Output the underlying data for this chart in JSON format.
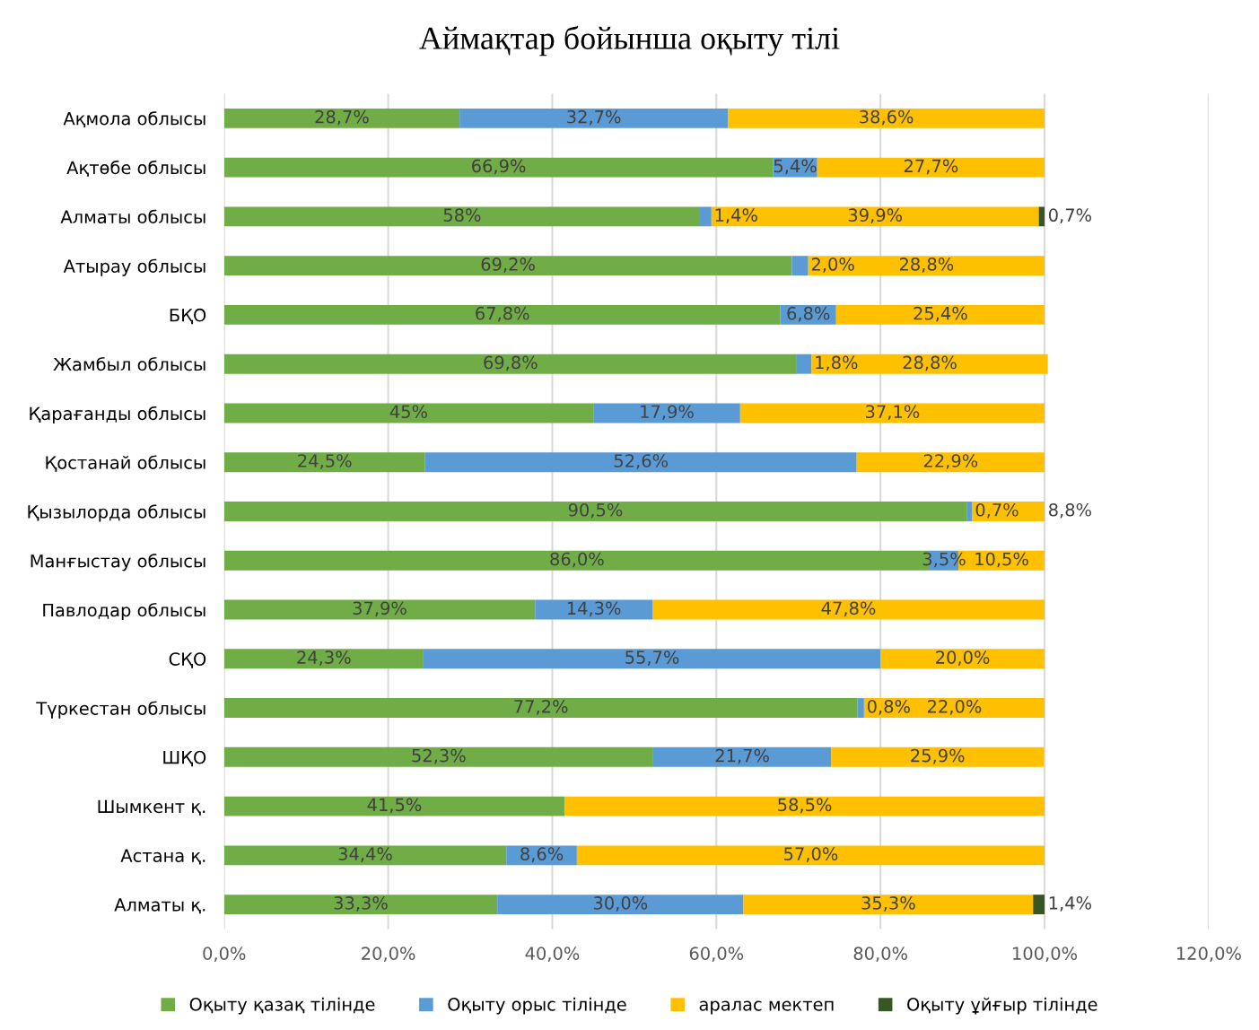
{
  "chart_data": {
    "type": "bar",
    "orientation": "horizontal",
    "stacked": true,
    "title": "Аймақтар бойынша оқыту тілі",
    "categories": [
      "Ақмола облысы",
      "Ақтөбе облысы",
      "Алматы облысы",
      "Атырау облысы",
      "БҚО",
      "Жамбыл облысы",
      "Қарағанды облысы",
      "Қостанай облысы",
      "Қызылорда облысы",
      "Манғыстау облысы",
      "Павлодар облысы",
      "СҚО",
      "Түркестан облысы",
      "ШҚО",
      "Шымкент қ.",
      "Астана қ.",
      "Алматы қ."
    ],
    "series": [
      {
        "name": "Оқыту қазақ тілінде",
        "color": "#70ad47",
        "values": [
          28.7,
          66.9,
          58,
          69.2,
          67.8,
          69.8,
          45,
          24.5,
          90.5,
          86.0,
          37.9,
          24.3,
          77.2,
          52.3,
          41.5,
          34.4,
          33.3
        ],
        "value_labels": [
          "28,7%",
          "66,9%",
          "58%",
          "69,2%",
          "67,8%",
          "69,8%",
          "45%",
          "24,5%",
          "90,5%",
          "86,0%",
          "37,9%",
          "24,3%",
          "77,2%",
          "52,3%",
          "41,5%",
          "34,4%",
          "33,3%"
        ]
      },
      {
        "name": "Оқыту орыс тілінде",
        "color": "#5b9bd5",
        "values": [
          32.7,
          5.4,
          1.4,
          2.0,
          6.8,
          1.8,
          17.9,
          52.6,
          0.7,
          3.5,
          14.3,
          55.7,
          0.8,
          21.7,
          null,
          8.6,
          30.0
        ],
        "value_labels": [
          "32,7%",
          "5,4%",
          "1,4%",
          "2,0%",
          "6,8%",
          "1,8%",
          "17,9%",
          "52,6%",
          "0,7%",
          "3,5%",
          "14,3%",
          "55,7%",
          "0,8%",
          "21,7%",
          null,
          "8,6%",
          "30,0%"
        ]
      },
      {
        "name": "аралас мектеп",
        "color": "#ffc000",
        "values": [
          38.6,
          27.7,
          39.9,
          28.8,
          25.4,
          28.8,
          37.1,
          22.9,
          8.8,
          10.5,
          47.8,
          20.0,
          22.0,
          25.9,
          58.5,
          57.0,
          35.3
        ],
        "value_labels": [
          "38,6%",
          "27,7%",
          "39,9%",
          "28,8%",
          "25,4%",
          "28,8%",
          "37,1%",
          "22,9%",
          "8,8%",
          "10,5%",
          "47,8%",
          "20,0%",
          "22,0%",
          "25,9%",
          "58,5%",
          "57,0%",
          "35,3%"
        ]
      },
      {
        "name": "Оқыту ұйғыр тілінде",
        "color": "#375623",
        "values": [
          null,
          null,
          0.7,
          null,
          null,
          null,
          null,
          null,
          null,
          null,
          null,
          null,
          null,
          null,
          null,
          null,
          1.4
        ],
        "value_labels": [
          null,
          null,
          "0,7%",
          null,
          null,
          null,
          null,
          null,
          null,
          null,
          null,
          null,
          null,
          null,
          null,
          null,
          "1,4%"
        ]
      }
    ],
    "xlim": [
      0,
      120
    ],
    "xticks": [
      {
        "value": 0,
        "label": "0,0%"
      },
      {
        "value": 20,
        "label": "20,0%"
      },
      {
        "value": 40,
        "label": "40,0%"
      },
      {
        "value": 60,
        "label": "60,0%"
      },
      {
        "value": 80,
        "label": "80,0%"
      },
      {
        "value": 100,
        "label": "100,0%"
      },
      {
        "value": 120,
        "label": "120,0%"
      }
    ],
    "grid": "x",
    "legend": "bottom"
  }
}
